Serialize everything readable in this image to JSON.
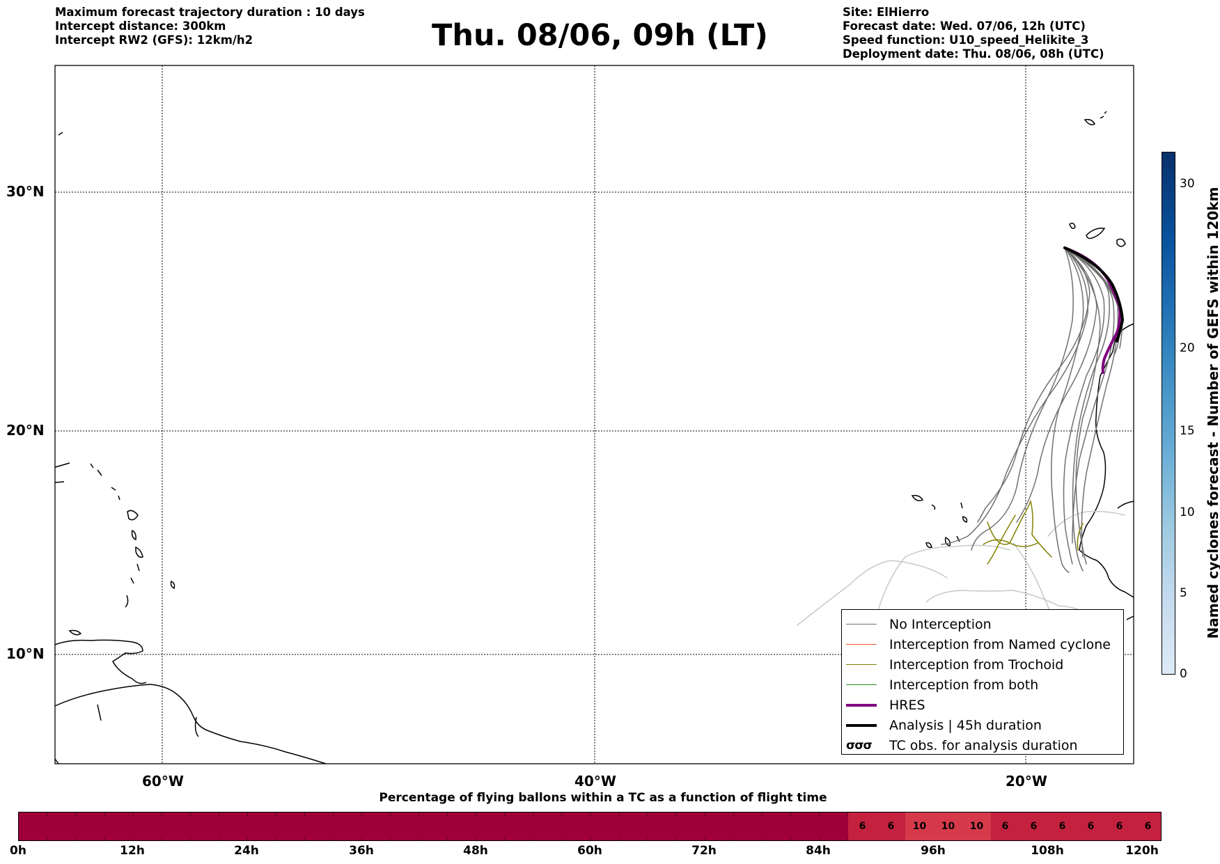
{
  "header": {
    "left_lines": [
      "Maximum forecast trajectory duration : 10 days",
      "Intercept distance: 300km",
      "Intercept RW2 (GFS):  12km/h2"
    ],
    "title": "Thu. 08/06, 09h (LT)",
    "right_lines": [
      "Site: ElHierro",
      "Forecast date: Wed. 07/06, 12h (UTC)",
      "Speed function: U10_speed_Helikite_3",
      "Deployment date: Thu. 08/06, 08h (UTC)"
    ]
  },
  "map": {
    "lat_labels": [
      "30°N",
      "20°N",
      "10°N"
    ],
    "lon_labels": [
      "60°W",
      "40°W",
      "20°W"
    ],
    "gridlines": true
  },
  "legend": {
    "items": [
      {
        "label": "No Interception",
        "color": "#707070"
      },
      {
        "label": "Interception from Named cyclone",
        "color": "#e8562a"
      },
      {
        "label": "Interception from Trochoid",
        "color": "#808000"
      },
      {
        "label": "Interception from both",
        "color": "#228b22"
      },
      {
        "label": "HRES",
        "color": "#800080"
      },
      {
        "label": "Analysis | 45h duration",
        "color": "#000000"
      },
      {
        "label": "TC obs. for analysis duration",
        "symbol": "σσσ"
      }
    ]
  },
  "colorbar": {
    "label": "Named cyclones forecast - Number of GEFS within 120km",
    "ticks": [
      "0",
      "5",
      "10",
      "15",
      "20",
      "30"
    ]
  },
  "timeline": {
    "title": "Percentage of flying ballons within a TC as a function of flight time",
    "ticks": [
      "0h",
      "12h",
      "24h",
      "36h",
      "48h",
      "60h",
      "72h",
      "84h",
      "96h",
      "108h",
      "120h"
    ],
    "cell_values": [
      "6",
      "6",
      "10",
      "10",
      "10",
      "6",
      "6",
      "6",
      "6",
      "6",
      "6"
    ]
  }
}
